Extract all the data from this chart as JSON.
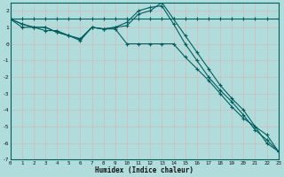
{
  "xlabel": "Humidex (Indice chaleur)",
  "bg_color": "#b0dcdc",
  "grid_color": "#c8e8e8",
  "line_color": "#006060",
  "xlim": [
    0,
    23
  ],
  "ylim": [
    -7,
    2.5
  ],
  "line1_x": [
    0,
    1,
    2,
    3,
    4,
    5,
    6,
    7,
    8,
    9,
    10,
    11,
    12,
    13,
    14,
    15,
    16,
    17,
    18,
    19,
    20,
    21,
    22,
    23
  ],
  "line1_y": [
    1.5,
    1.5,
    1.5,
    1.5,
    1.5,
    1.5,
    1.5,
    1.5,
    1.5,
    1.5,
    1.5,
    1.5,
    1.5,
    1.5,
    1.5,
    1.5,
    1.5,
    1.5,
    1.5,
    1.5,
    1.5,
    1.5,
    1.5,
    1.5
  ],
  "line2_x": [
    0,
    1,
    2,
    3,
    4,
    5,
    6,
    7,
    8,
    9,
    10,
    11,
    12,
    13,
    14,
    15,
    16,
    17,
    18,
    19,
    20,
    21,
    22,
    23
  ],
  "line2_y": [
    1.5,
    1.2,
    1.0,
    1.0,
    0.7,
    0.5,
    0.3,
    1.0,
    0.9,
    1.0,
    1.1,
    1.8,
    2.0,
    2.5,
    1.5,
    0.5,
    -0.5,
    -1.5,
    -2.5,
    -3.3,
    -4.0,
    -5.0,
    -6.0,
    -6.5
  ],
  "line3_x": [
    0,
    1,
    2,
    3,
    4,
    5,
    6,
    7,
    8,
    9,
    10,
    11,
    12,
    13,
    14,
    15,
    16,
    17,
    18,
    19,
    20,
    21,
    22,
    23
  ],
  "line3_y": [
    1.5,
    1.2,
    1.0,
    1.0,
    0.7,
    0.5,
    0.3,
    1.0,
    0.9,
    1.0,
    1.3,
    2.0,
    2.2,
    2.3,
    1.2,
    0.0,
    -1.0,
    -2.0,
    -2.8,
    -3.5,
    -4.3,
    -5.2,
    -5.8,
    -6.5
  ],
  "line4_x": [
    0,
    1,
    2,
    3,
    4,
    5,
    6,
    7,
    8,
    9,
    10,
    11,
    12,
    13,
    14,
    15,
    16,
    17,
    18,
    19,
    20,
    21,
    22,
    23
  ],
  "line4_y": [
    1.5,
    1.0,
    1.0,
    0.8,
    0.8,
    0.5,
    0.2,
    1.0,
    0.9,
    0.9,
    0.0,
    0.0,
    0.0,
    0.0,
    0.0,
    -0.8,
    -1.5,
    -2.2,
    -3.0,
    -3.8,
    -4.5,
    -5.0,
    -5.5,
    -6.5
  ],
  "xticks": [
    0,
    1,
    2,
    3,
    4,
    5,
    6,
    7,
    8,
    9,
    10,
    11,
    12,
    13,
    14,
    15,
    16,
    17,
    18,
    19,
    20,
    21,
    22,
    23
  ],
  "yticks": [
    -7,
    -6,
    -5,
    -4,
    -3,
    -2,
    -1,
    0,
    1,
    2
  ]
}
